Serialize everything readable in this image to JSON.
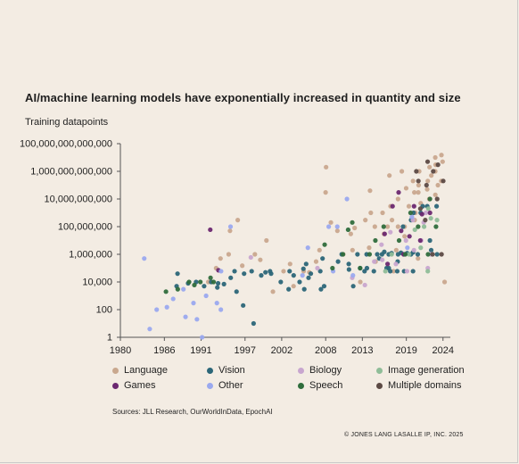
{
  "header": {
    "title": "AI/machine learning models have exponentially increased in quantity and size",
    "subtitle": "Training datapoints"
  },
  "footer": {
    "sources": "Sources: JLL Research, OurWorldInData, EpochAI",
    "copyright": "© JONES LANG LASALLE IP, INC. 2025"
  },
  "chart_data": {
    "type": "scatter",
    "title": "AI/machine learning models have exponentially increased in quantity and size",
    "ylabel": "Training datapoints",
    "xlabel": "",
    "yscale": "log",
    "xlim": [
      1980,
      2025
    ],
    "ylim": [
      1,
      100000000000000
    ],
    "x_ticks": [
      1980,
      1986,
      1991,
      1997,
      2002,
      2008,
      2013,
      2019,
      2024
    ],
    "y_ticks": [
      {
        "value": 1,
        "label": "1"
      },
      {
        "value": 100,
        "label": "100"
      },
      {
        "value": 10000,
        "label": "10,000"
      },
      {
        "value": 1000000,
        "label": "1,000,000"
      },
      {
        "value": 100000000,
        "label": "100,000,000"
      },
      {
        "value": 10000000000,
        "label": "10,000,000,000"
      },
      {
        "value": 1000000000000,
        "label": "1,000,000,000,000"
      },
      {
        "value": 100000000000000,
        "label": "100,000,000,000,000"
      }
    ],
    "grid": false,
    "legend_position": "bottom",
    "series": [
      {
        "name": "Language",
        "color": "#c9a88e",
        "points": [
          [
            1992,
            10000
          ],
          [
            1993,
            100000
          ],
          [
            1994,
            500000
          ],
          [
            1995,
            1000000
          ],
          [
            1995,
            50000000
          ],
          [
            1996,
            300000000
          ],
          [
            1997,
            150000
          ],
          [
            1998,
            1000000
          ],
          [
            1999,
            400000
          ],
          [
            2000,
            10000000
          ],
          [
            2001,
            2000
          ],
          [
            2002,
            60000
          ],
          [
            2003,
            200000
          ],
          [
            2004,
            5000
          ],
          [
            2005,
            60000
          ],
          [
            2006,
            50000
          ],
          [
            2007,
            2000000
          ],
          [
            2007,
            300000
          ],
          [
            2008,
            2000000000000
          ],
          [
            2008,
            30000000000
          ],
          [
            2009,
            200000000
          ],
          [
            2010,
            50000000
          ],
          [
            2010,
            1000000
          ],
          [
            2011,
            30000000
          ],
          [
            2012,
            2000000
          ],
          [
            2012,
            80000000
          ],
          [
            2013,
            300000000
          ],
          [
            2013,
            10000
          ],
          [
            2014,
            3000000
          ],
          [
            2014,
            40000000000
          ],
          [
            2014,
            1000000000
          ],
          [
            2015,
            300000
          ],
          [
            2015,
            100000000
          ],
          [
            2016,
            100000000
          ],
          [
            2016,
            30000000
          ],
          [
            2016,
            1000000000
          ],
          [
            2017,
            300000000
          ],
          [
            2017,
            3000000000
          ],
          [
            2017,
            500000000000
          ],
          [
            2017,
            60000
          ],
          [
            2018,
            100000000
          ],
          [
            2018,
            10000000000
          ],
          [
            2018,
            2000000
          ],
          [
            2018,
            1000000000000
          ],
          [
            2019,
            100000000
          ],
          [
            2019,
            3000000000
          ],
          [
            2019,
            60000000000
          ],
          [
            2019,
            20000000
          ],
          [
            2020,
            30000000000
          ],
          [
            2020,
            200000000000
          ],
          [
            2020,
            1000000000
          ],
          [
            2020,
            300000000
          ],
          [
            2021,
            100000000000
          ],
          [
            2021,
            1000000000000
          ],
          [
            2021,
            5000000000
          ],
          [
            2021,
            30000000000
          ],
          [
            2021,
            500000
          ],
          [
            2022,
            200000000000
          ],
          [
            2022,
            2000000000000
          ],
          [
            2022,
            10000000000
          ],
          [
            2022,
            500000000000
          ],
          [
            2022,
            50000000000
          ],
          [
            2023,
            1000000000000
          ],
          [
            2023,
            3000000000000
          ],
          [
            2023,
            10000000000000
          ],
          [
            2023,
            100000000000
          ],
          [
            2023,
            20000000000
          ],
          [
            2024,
            5000000000000
          ],
          [
            2024,
            15000000000000
          ],
          [
            2024,
            200000000000
          ],
          [
            2024,
            10000
          ]
        ]
      },
      {
        "name": "Vision",
        "color": "#2b6678",
        "points": [
          [
            1988,
            5000
          ],
          [
            1988,
            40000
          ],
          [
            1989,
            8000
          ],
          [
            1990,
            10000
          ],
          [
            1991,
            5000
          ],
          [
            1992,
            10000
          ],
          [
            1993,
            8000
          ],
          [
            1993,
            4000
          ],
          [
            1994,
            7000
          ],
          [
            1995,
            20000
          ],
          [
            1996,
            60000
          ],
          [
            1996,
            2000
          ],
          [
            1997,
            40000
          ],
          [
            1997,
            200
          ],
          [
            1998,
            60000
          ],
          [
            1998,
            10
          ],
          [
            1999,
            30000
          ],
          [
            2000,
            50000
          ],
          [
            2000,
            60000
          ],
          [
            2001,
            40000
          ],
          [
            2002,
            10000
          ],
          [
            2003,
            60000
          ],
          [
            2003,
            3000
          ],
          [
            2004,
            30000
          ],
          [
            2004,
            10000
          ],
          [
            2005,
            90000
          ],
          [
            2005,
            200000
          ],
          [
            2005,
            3000
          ],
          [
            2006,
            40000
          ],
          [
            2006,
            20000
          ],
          [
            2007,
            60000
          ],
          [
            2007,
            3000
          ],
          [
            2008,
            5000
          ],
          [
            2008,
            500000
          ],
          [
            2010,
            300000
          ],
          [
            2010,
            1000000
          ],
          [
            2011,
            80000
          ],
          [
            2011,
            200000
          ],
          [
            2012,
            1000000
          ],
          [
            2012,
            5000
          ],
          [
            2013,
            60000
          ],
          [
            2013,
            100000
          ],
          [
            2014,
            1000000
          ],
          [
            2014,
            100000
          ],
          [
            2015,
            60000
          ],
          [
            2015,
            1000000
          ],
          [
            2015,
            500000
          ],
          [
            2016,
            100000
          ],
          [
            2016,
            1000000
          ],
          [
            2016,
            1500000
          ],
          [
            2017,
            1000000
          ],
          [
            2017,
            60000
          ],
          [
            2017,
            1200000
          ],
          [
            2017,
            100000
          ],
          [
            2018,
            1000000
          ],
          [
            2018,
            60000
          ],
          [
            2018,
            300000
          ],
          [
            2018,
            1300000
          ],
          [
            2019,
            1000000
          ],
          [
            2019,
            60000
          ],
          [
            2019,
            100000000
          ],
          [
            2019,
            1200000
          ],
          [
            2020,
            1000000
          ],
          [
            2020,
            60000
          ],
          [
            2020,
            300000000
          ],
          [
            2020,
            1000000000
          ],
          [
            2020,
            1400000
          ],
          [
            2021,
            1000000
          ],
          [
            2021,
            3000000000
          ],
          [
            2021,
            1000000000
          ],
          [
            2022,
            10000000
          ],
          [
            2022,
            3000000000
          ],
          [
            2022,
            2000000
          ],
          [
            2023,
            1000000
          ],
          [
            2023,
            3000000000
          ]
        ]
      },
      {
        "name": "Biology",
        "color": "#c8a6cf",
        "points": [
          [
            1998,
            600000
          ],
          [
            2007,
            100000
          ],
          [
            2012,
            20000
          ],
          [
            2013,
            6000
          ],
          [
            2015,
            300000
          ],
          [
            2016,
            5000000
          ],
          [
            2016,
            400000
          ],
          [
            2017,
            40000000
          ],
          [
            2018,
            200000
          ],
          [
            2019,
            60000
          ],
          [
            2019,
            10000000
          ],
          [
            2020,
            300000000
          ],
          [
            2020,
            2000000
          ],
          [
            2021,
            200000000
          ],
          [
            2021,
            10000000
          ],
          [
            2022,
            100000
          ],
          [
            2022,
            1000000000
          ],
          [
            2022,
            1000000
          ]
        ]
      },
      {
        "name": "Image generation",
        "color": "#8fbd98",
        "points": [
          [
            2016,
            60000
          ],
          [
            2017,
            1000000
          ],
          [
            2019,
            1000000
          ],
          [
            2020,
            60000000
          ],
          [
            2021,
            3000000
          ],
          [
            2021,
            100000000
          ],
          [
            2022,
            400000000
          ],
          [
            2022,
            60000
          ],
          [
            2022,
            2000000000
          ],
          [
            2023,
            300000000
          ]
        ]
      },
      {
        "name": "Games",
        "color": "#6b2870",
        "points": [
          [
            1992,
            60000000
          ],
          [
            1993,
            70000
          ],
          [
            2016,
            30000000
          ],
          [
            2016,
            200000
          ],
          [
            2017,
            3000000000
          ],
          [
            2018,
            50000000
          ],
          [
            2018,
            30000000000
          ],
          [
            2019,
            1000000
          ],
          [
            2019,
            20000000
          ],
          [
            2020,
            3000000000
          ],
          [
            2021,
            800000000
          ],
          [
            2021,
            10000000
          ],
          [
            2022,
            1000000000
          ]
        ]
      },
      {
        "name": "Other",
        "color": "#9aa9ef",
        "points": [
          [
            1983,
            500000
          ],
          [
            1984,
            4
          ],
          [
            1985,
            100
          ],
          [
            1986,
            150
          ],
          [
            1987,
            600
          ],
          [
            1989,
            3000
          ],
          [
            1989,
            30
          ],
          [
            1990,
            300
          ],
          [
            1990,
            20
          ],
          [
            1991,
            1
          ],
          [
            1992,
            1000
          ],
          [
            1993,
            300
          ],
          [
            1994,
            100
          ],
          [
            1994,
            60000
          ],
          [
            1995,
            100000000
          ],
          [
            2005,
            30000
          ],
          [
            2006,
            3000000
          ],
          [
            2008,
            100000000
          ],
          [
            2009,
            60000
          ],
          [
            2010,
            100000000
          ],
          [
            2011,
            10000000000
          ],
          [
            2012,
            30000
          ],
          [
            2019,
            3000000
          ],
          [
            2020,
            500000000
          ]
        ]
      },
      {
        "name": "Speech",
        "color": "#2f6d3c",
        "points": [
          [
            1986,
            2000
          ],
          [
            1988,
            3000
          ],
          [
            1989,
            10000
          ],
          [
            1990,
            6000
          ],
          [
            1991,
            10000
          ],
          [
            1992,
            20000
          ],
          [
            1993,
            10000
          ],
          [
            2008,
            5000000
          ],
          [
            2009,
            100000
          ],
          [
            2010,
            1000000
          ],
          [
            2011,
            60000000
          ],
          [
            2012,
            200000000
          ],
          [
            2013,
            100000
          ],
          [
            2014,
            1000000
          ],
          [
            2015,
            10000000
          ],
          [
            2016,
            100000000
          ],
          [
            2018,
            10000000
          ],
          [
            2019,
            1000000
          ],
          [
            2020,
            1000000000
          ],
          [
            2021,
            100000000
          ],
          [
            2022,
            10000000000
          ],
          [
            2022,
            1000000
          ],
          [
            2023,
            100000000
          ]
        ]
      },
      {
        "name": "Multiple domains",
        "color": "#5c4a44",
        "points": [
          [
            2020,
            1000000000000
          ],
          [
            2021,
            200000000000
          ],
          [
            2021,
            2000000000
          ],
          [
            2022,
            100000000000
          ],
          [
            2022,
            5000000000000
          ],
          [
            2022,
            300000000
          ],
          [
            2023,
            1000000000000
          ],
          [
            2023,
            10000000000
          ],
          [
            2023,
            3000000000000
          ],
          [
            2023,
            1000000
          ],
          [
            2024,
            200000000000
          ],
          [
            2024,
            1000000
          ]
        ]
      }
    ]
  }
}
